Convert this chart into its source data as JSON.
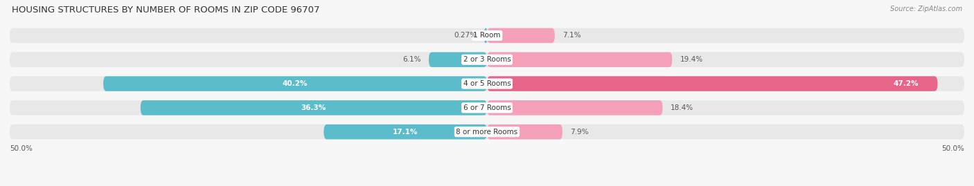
{
  "title": "HOUSING STRUCTURES BY NUMBER OF ROOMS IN ZIP CODE 96707",
  "source": "Source: ZipAtlas.com",
  "categories": [
    "1 Room",
    "2 or 3 Rooms",
    "4 or 5 Rooms",
    "6 or 7 Rooms",
    "8 or more Rooms"
  ],
  "owner_values": [
    0.27,
    6.1,
    40.2,
    36.3,
    17.1
  ],
  "renter_values": [
    7.1,
    19.4,
    47.2,
    18.4,
    7.9
  ],
  "owner_color": "#5bbccc",
  "renter_color_light": "#f4a0b8",
  "renter_color_dark": "#e8658a",
  "bar_bg_color": "#e8e8e8",
  "max_val": 50.0,
  "axis_label_left": "50.0%",
  "axis_label_right": "50.0%",
  "title_fontsize": 9.5,
  "source_fontsize": 7,
  "label_fontsize": 7.5,
  "category_fontsize": 7.5,
  "bar_height": 0.62,
  "background_color": "#f7f7f7",
  "value_label_color_dark": "#555555",
  "value_label_color_white": "#ffffff"
}
